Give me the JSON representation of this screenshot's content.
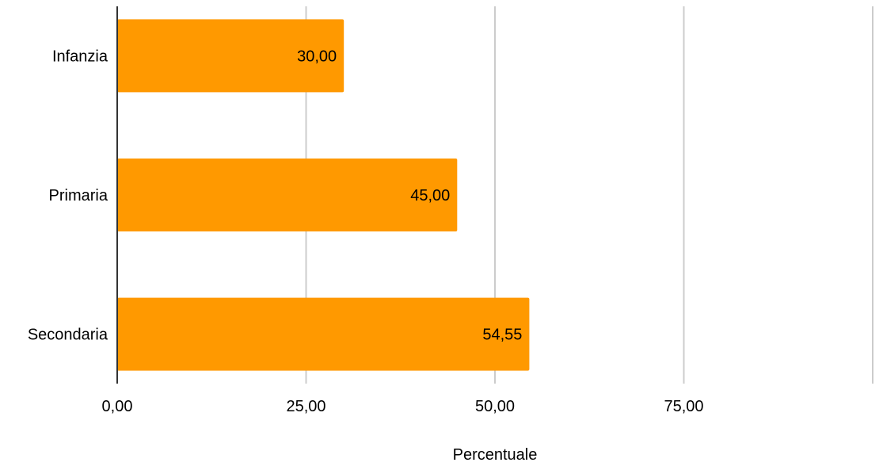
{
  "chart_data": {
    "type": "bar",
    "orientation": "horizontal",
    "categories": [
      "Infanzia",
      "Primaria",
      "Secondaria"
    ],
    "values": [
      30.0,
      45.0,
      54.55
    ],
    "value_labels": [
      "30,00",
      "45,00",
      "54,55"
    ],
    "xlabel": "Percentuale",
    "ylabel": "",
    "xlim": [
      0,
      100
    ],
    "x_ticks": [
      0,
      25,
      50,
      75
    ],
    "x_tick_labels": [
      "0,00",
      "25,00",
      "50,00",
      "75,00"
    ],
    "grid": "vertical",
    "legend": "none",
    "bar_color": "#FF9900",
    "grid_color": "#CCCCCC"
  }
}
